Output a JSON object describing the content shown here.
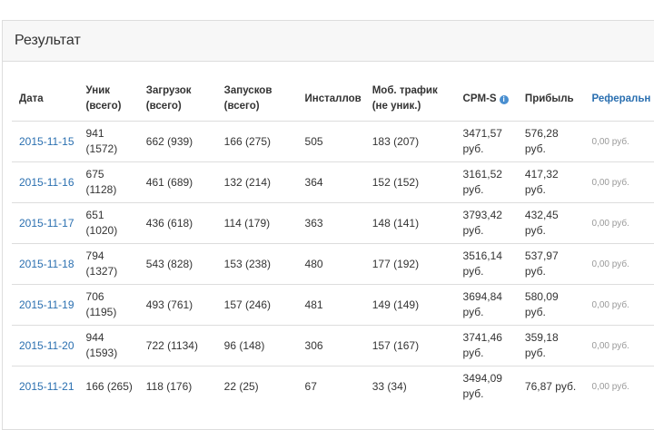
{
  "panel": {
    "title": "Результат"
  },
  "table": {
    "header": [
      "Дата",
      "Уник (всего)",
      "Загрузок (всего)",
      "Запусков (всего)",
      "Инсталлов",
      "Моб. трафик (не уник.)",
      "CPM-S",
      "Прибыль",
      "Реферальн"
    ],
    "rows": [
      [
        "2015-11-15",
        "941 (1572)",
        "662 (939)",
        "166 (275)",
        "505",
        "183 (207)",
        "3471,57 руб.",
        "576,28 руб.",
        "0,00 руб."
      ],
      [
        "2015-11-16",
        "675 (1128)",
        "461 (689)",
        "132 (214)",
        "364",
        "152 (152)",
        "3161,52 руб.",
        "417,32 руб.",
        "0,00 руб."
      ],
      [
        "2015-11-17",
        "651 (1020)",
        "436 (618)",
        "114 (179)",
        "363",
        "148 (141)",
        "3793,42 руб.",
        "432,45 руб.",
        "0,00 руб."
      ],
      [
        "2015-11-18",
        "794 (1327)",
        "543 (828)",
        "153 (238)",
        "480",
        "177 (192)",
        "3516,14 руб.",
        "537,97 руб.",
        "0,00 руб."
      ],
      [
        "2015-11-19",
        "706 (1195)",
        "493 (761)",
        "157 (246)",
        "481",
        "149 (149)",
        "3694,84 руб.",
        "580,09 руб.",
        "0,00 руб."
      ],
      [
        "2015-11-20",
        "944 (1593)",
        "722 (1134)",
        "96 (148)",
        "306",
        "157 (167)",
        "3741,46 руб.",
        "359,18 руб.",
        "0,00 руб."
      ],
      [
        "2015-11-21",
        "166 (265)",
        "118 (176)",
        "22 (25)",
        "67",
        "33 (34)",
        "3494,09 руб.",
        "76,87 руб.",
        "0,00 руб."
      ]
    ]
  }
}
